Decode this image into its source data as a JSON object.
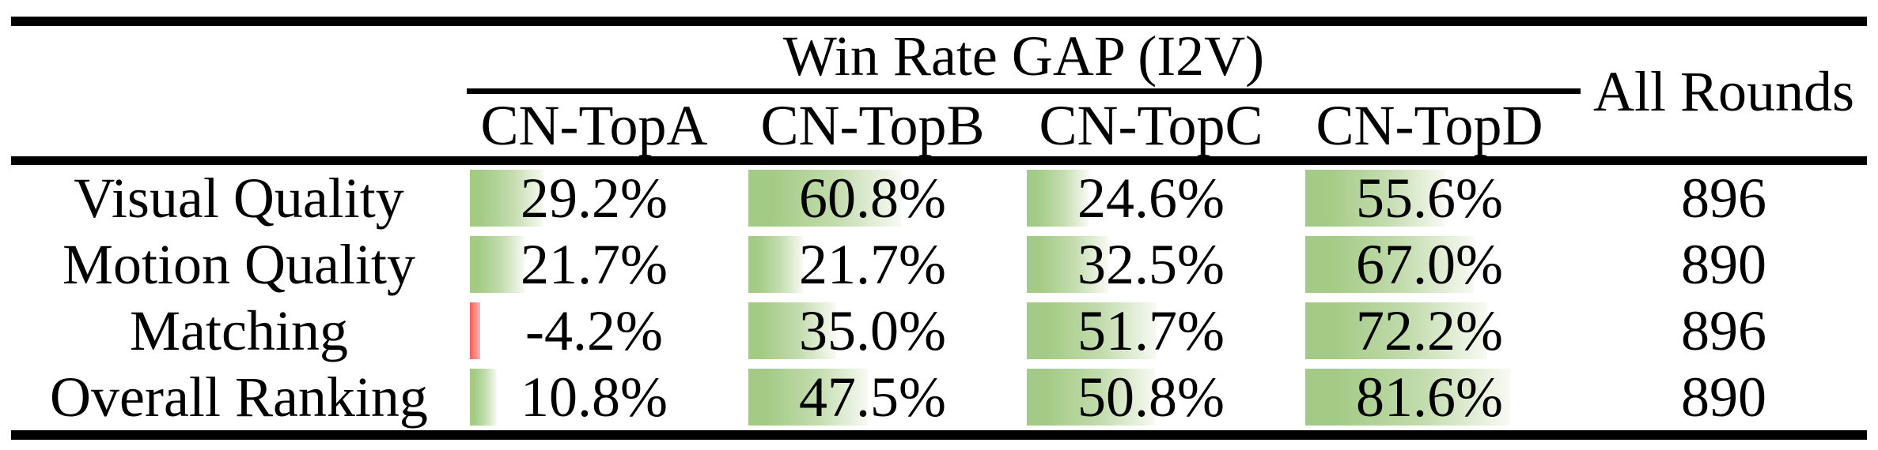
{
  "figure": {
    "group_header": "Win Rate GAP (I2V)",
    "all_rounds_header": "All Rounds",
    "column_headers": [
      "CN-TopA",
      "CN-TopB",
      "CN-TopC",
      "CN-TopD"
    ],
    "rows": [
      {
        "label": "Visual Quality",
        "cells": [
          "29.2%",
          "60.8%",
          "24.6%",
          "55.6%"
        ],
        "values": [
          29.2,
          60.8,
          24.6,
          55.6
        ],
        "all_rounds": "896"
      },
      {
        "label": "Motion Quality",
        "cells": [
          "21.7%",
          "21.7%",
          "32.5%",
          "67.0%"
        ],
        "values": [
          21.7,
          21.7,
          32.5,
          67.0
        ],
        "all_rounds": "890"
      },
      {
        "label": "Matching",
        "cells": [
          "-4.2%",
          "35.0%",
          "51.7%",
          "72.2%"
        ],
        "values": [
          -4.2,
          35.0,
          51.7,
          72.2
        ],
        "all_rounds": "896"
      },
      {
        "label": "Overall Ranking",
        "cells": [
          "10.8%",
          "47.5%",
          "50.8%",
          "81.6%"
        ],
        "values": [
          10.8,
          47.5,
          50.8,
          81.6
        ],
        "all_rounds": "890"
      }
    ],
    "colors": {
      "rule": "#000000",
      "background": "#ffffff",
      "bar_green": "#a4cb86",
      "bar_green_mid": "#c3dcae",
      "bar_green_fade": "#f7faf2",
      "bar_red": "#f55c5c",
      "bar_red_fade": "#fbb6b6"
    }
  }
}
